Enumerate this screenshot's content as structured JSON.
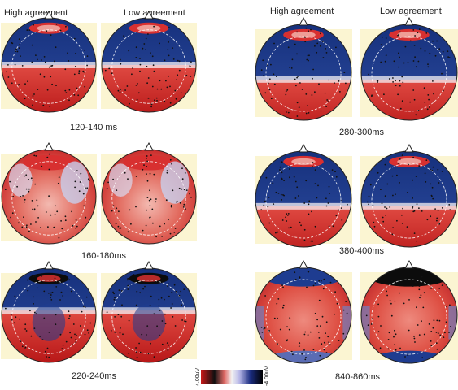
{
  "headers": {
    "left_high": "High agreement",
    "left_low": "Low agreement",
    "right_high": "High agreement",
    "right_low": "Low agreement"
  },
  "windows": [
    {
      "label": "120-140 ms",
      "high": "mixed",
      "low": "mixed"
    },
    {
      "label": "160-180ms",
      "high": "warm",
      "low": "warm"
    },
    {
      "label": "220-240ms",
      "high": "dark",
      "low": "dark"
    },
    {
      "label": "280-300ms",
      "high": "blue",
      "low": "blue"
    },
    {
      "label": "380-400ms",
      "high": "blue",
      "low": "blue"
    },
    {
      "label": "840-860ms",
      "high": "full",
      "low": "full"
    }
  ],
  "colorbar": {
    "max_label": "4.00uV",
    "min_label": "-4.00uV",
    "colors": [
      "#c81818",
      "#101010",
      "#b8b8e8",
      "#1a2c80",
      "#000000"
    ]
  },
  "palette": {
    "background_tile": "#fbf5d2",
    "red": "#d83030",
    "red_light": "#f2b0a8",
    "white": "#f4f0f4",
    "blue": "#1e3c90",
    "black": "#0c0c0c"
  }
}
